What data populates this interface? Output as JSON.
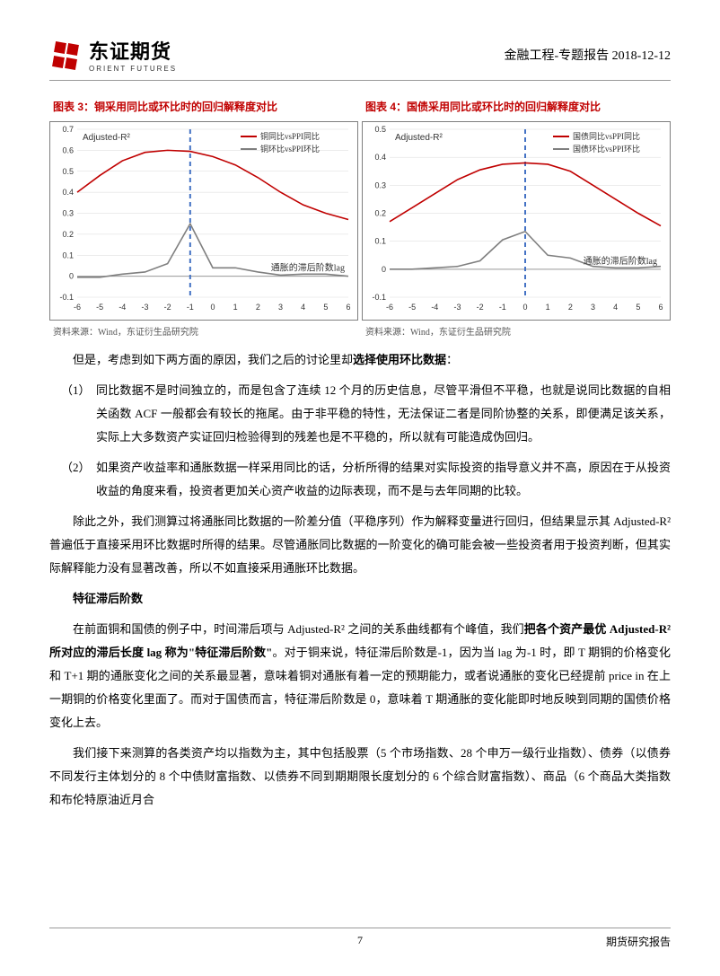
{
  "header": {
    "logo_cn": "东证期货",
    "logo_en": "ORIENT FUTURES",
    "right": "金融工程-专题报告 2018-12-12"
  },
  "chart3": {
    "title": "图表 3：铜采用同比或环比时的回归解释度对比",
    "source": "资料来源：Wind，东证衍生品研究院",
    "ylabel": "Adjusted-R²",
    "xlabel": "通胀的滞后阶数lag",
    "legend1": "铜同比vsPPI同比",
    "legend2": "铜环比vsPPI环比",
    "x_ticks": [
      -6,
      -5,
      -4,
      -3,
      -2,
      -1,
      0,
      1,
      2,
      3,
      4,
      5,
      6
    ],
    "y_ticks": [
      -0.1,
      0,
      0.1,
      0.2,
      0.3,
      0.4,
      0.5,
      0.6,
      0.7
    ],
    "y_min": -0.1,
    "y_max": 0.7,
    "vline_x": -1,
    "series1_color": "#c00000",
    "series2_color": "#7f7f7f",
    "vline_color": "#4472c4",
    "grid_color": "#d9d9d9",
    "background_color": "#ffffff",
    "series1_values": [
      0.4,
      0.48,
      0.55,
      0.59,
      0.6,
      0.595,
      0.57,
      0.53,
      0.47,
      0.4,
      0.34,
      0.3,
      0.27
    ],
    "series2_values": [
      -0.005,
      -0.005,
      0.01,
      0.02,
      0.06,
      0.25,
      0.04,
      0.04,
      0.02,
      0.005,
      0.01,
      0.01,
      0.0
    ],
    "line_width": 1.6
  },
  "chart4": {
    "title": "图表 4：国债采用同比或环比时的回归解释度对比",
    "source": "资料来源：Wind，东证衍生品研究院",
    "ylabel": "Adjusted-R²",
    "xlabel": "通胀的滞后阶数lag",
    "legend1": "国债同比vsPPI同比",
    "legend2": "国债环比vsPPI环比",
    "x_ticks": [
      -6,
      -5,
      -4,
      -3,
      -2,
      -1,
      0,
      1,
      2,
      3,
      4,
      5,
      6
    ],
    "y_ticks": [
      -0.1,
      0,
      0.1,
      0.2,
      0.3,
      0.4,
      0.5
    ],
    "y_min": -0.1,
    "y_max": 0.5,
    "vline_x": 0,
    "series1_color": "#c00000",
    "series2_color": "#7f7f7f",
    "vline_color": "#4472c4",
    "grid_color": "#d9d9d9",
    "background_color": "#ffffff",
    "series1_values": [
      0.17,
      0.22,
      0.27,
      0.32,
      0.355,
      0.375,
      0.38,
      0.375,
      0.35,
      0.3,
      0.25,
      0.2,
      0.155
    ],
    "series2_values": [
      0.0,
      0.0,
      0.005,
      0.01,
      0.03,
      0.105,
      0.135,
      0.05,
      0.04,
      0.01,
      0.005,
      0.005,
      0.01
    ],
    "line_width": 1.6
  },
  "body": {
    "intro": "但是，考虑到如下两方面的原因，我们之后的讨论里却选择使用环比数据：",
    "intro_bold": "选择使用环比数据",
    "item1_num": "（1）",
    "item1": "同比数据不是时间独立的，而是包含了连续 12 个月的历史信息，尽管平滑但不平稳，也就是说同比数据的自相关函数 ACF 一般都会有较长的拖尾。由于非平稳的特性，无法保证二者是同阶协整的关系，即便满足该关系，实际上大多数资产实证回归检验得到的残差也是不平稳的，所以就有可能造成伪回归。",
    "item2_num": "（2）",
    "item2": "如果资产收益率和通胀数据一样采用同比的话，分析所得的结果对实际投资的指导意义并不高，原因在于从投资收益的角度来看，投资者更加关心资产收益的边际表现，而不是与去年同期的比较。",
    "para2": "除此之外，我们测算过将通胀同比数据的一阶差分值（平稳序列）作为解释变量进行回归，但结果显示其 Adjusted-R² 普遍低于直接采用环比数据时所得的结果。尽管通胀同比数据的一阶变化的确可能会被一些投资者用于投资判断，但其实际解释能力没有显著改善，所以不如直接采用通胀环比数据。",
    "heading2": "特征滞后阶数",
    "para3_part1": "在前面铜和国债的例子中，时间滞后项与 Adjusted-R² 之间的关系曲线都有个峰值，我们",
    "para3_bold": "把各个资产最优 Adjusted-R² 所对应的滞后长度 lag 称为\"特征滞后阶数\"",
    "para3_part2": "。对于铜来说，特征滞后阶数是-1，因为当 lag 为-1 时，即 T 期铜的价格变化和 T+1 期的通胀变化之间的关系最显著，意味着铜对通胀有着一定的预期能力，或者说通胀的变化已经提前 price in 在上一期铜的价格变化里面了。而对于国债而言，特征滞后阶数是 0，意味着 T 期通胀的变化能即时地反映到同期的国债价格变化上去。",
    "para4": "我们接下来测算的各类资产均以指数为主，其中包括股票（5 个市场指数、28 个申万一级行业指数）、债券（以债券不同发行主体划分的 8 个中债财富指数、以债券不同到期期限长度划分的 6 个综合财富指数）、商品（6 个商品大类指数和布伦特原油近月合"
  },
  "footer": {
    "page": "7",
    "right": "期货研究报告"
  }
}
